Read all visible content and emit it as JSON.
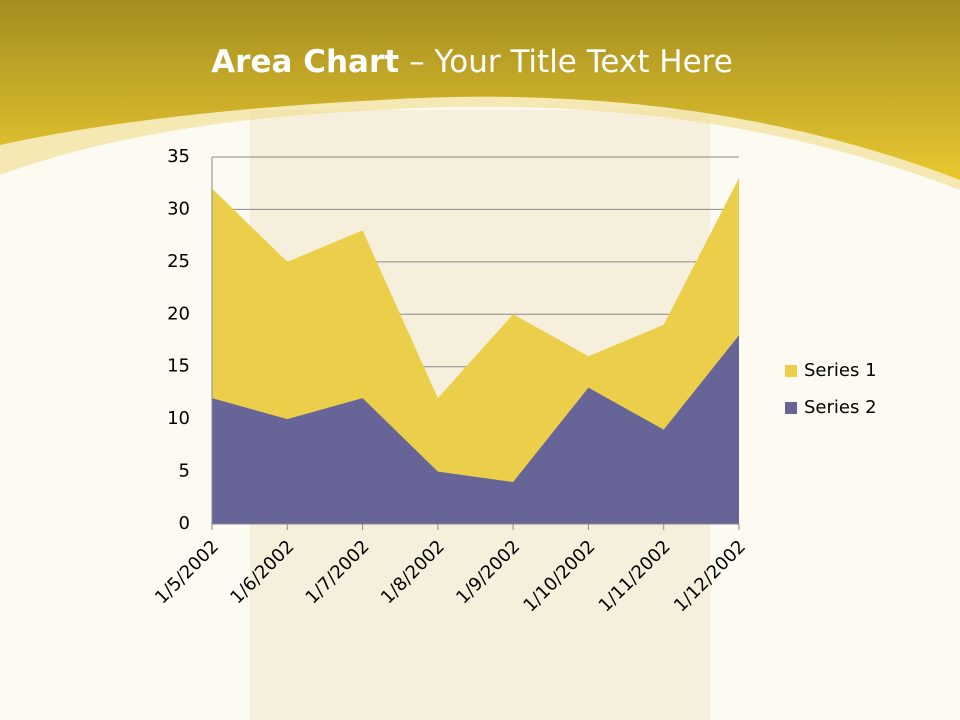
{
  "chart_data": {
    "type": "area",
    "title_bold": "Area Chart",
    "title": "– Your Title Text Here",
    "categories": [
      "1/5/2002",
      "1/6/2002",
      "1/7/2002",
      "1/8/2002",
      "1/9/2002",
      "1/10/2002",
      "1/11/2002",
      "1/12/2002"
    ],
    "series": [
      {
        "name": "Series 1",
        "color": "#ebcf4a",
        "values": [
          32,
          25,
          28,
          12,
          20,
          16,
          19,
          33
        ]
      },
      {
        "name": "Series 2",
        "color": "#676498",
        "values": [
          12,
          10,
          12,
          5,
          4,
          13,
          9,
          18
        ]
      }
    ],
    "ylim": [
      0,
      35
    ],
    "yticks": [
      0,
      5,
      10,
      15,
      20,
      25,
      30,
      35
    ],
    "grid": true,
    "legend": "right"
  }
}
